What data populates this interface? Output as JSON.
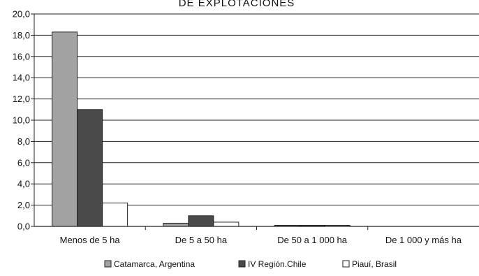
{
  "chart_data": {
    "type": "bar",
    "title": "DE EXPLOTACIONES",
    "categories": [
      "Menos de 5 ha",
      "De 5 a 50 ha",
      "De 50 a 1 000 ha",
      "De 1 000 y más ha"
    ],
    "series": [
      {
        "name": "Catamarca, Argentina",
        "color": "#a3a3a3",
        "values": [
          18.3,
          0.3,
          0.05,
          0.0
        ]
      },
      {
        "name": "IV Región.Chile",
        "color": "#4a4a4a",
        "values": [
          11.0,
          1.0,
          0.05,
          0.0
        ]
      },
      {
        "name": "Piauí, Brasil",
        "color": "#ffffff",
        "values": [
          2.2,
          0.4,
          0.05,
          0.0
        ]
      }
    ],
    "ylim": [
      0,
      20
    ],
    "yticks": [
      "0,0",
      "2,0",
      "4,0",
      "6,0",
      "8,0",
      "10,0",
      "12,0",
      "14,0",
      "16,0",
      "18,0",
      "20,0"
    ],
    "grid": true,
    "legend_position": "bottom"
  }
}
